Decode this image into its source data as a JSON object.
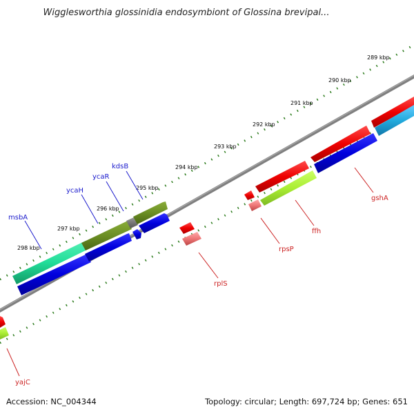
{
  "title": "Wigglesworthia glossinidia endosymbiont of Glossina brevipal...",
  "footer": {
    "accession": "Accession: NC_004344",
    "stats": "Topology: circular; Length: 697,724 bp; Genes: 651"
  },
  "ticks": [
    "289 kbp",
    "290 kbp",
    "291 kbp",
    "292 kbp",
    "293 kbp",
    "294 kbp",
    "295 kbp",
    "296 kbp",
    "297 kbp",
    "298 kbp"
  ],
  "genes_forward": [
    {
      "name": "msbA",
      "color": "#1a1acc"
    },
    {
      "name": "ycaH",
      "color": "#1a1acc"
    },
    {
      "name": "ycaR",
      "color": "#1a1acc"
    },
    {
      "name": "kdsB",
      "color": "#1a1acc"
    }
  ],
  "genes_reverse": [
    {
      "name": "rplS",
      "color": "#cc2222"
    },
    {
      "name": "rpsP",
      "color": "#cc2222"
    },
    {
      "name": "ffh",
      "color": "#cc2222"
    },
    {
      "name": "gshA",
      "color": "#cc2222"
    },
    {
      "name": "yajC",
      "color": "#cc2222"
    }
  ],
  "colors": {
    "backbone": "#808080",
    "forward_cds": "#0000dd",
    "reverse_cds": "#ee0000",
    "cog_teal": "#22dd99",
    "cog_olive": "#6b8e23",
    "cog_lime": "#aaee33",
    "cog_cyan": "#22aadd",
    "rna": "#ee7777",
    "tick": "#2a7a1a"
  }
}
